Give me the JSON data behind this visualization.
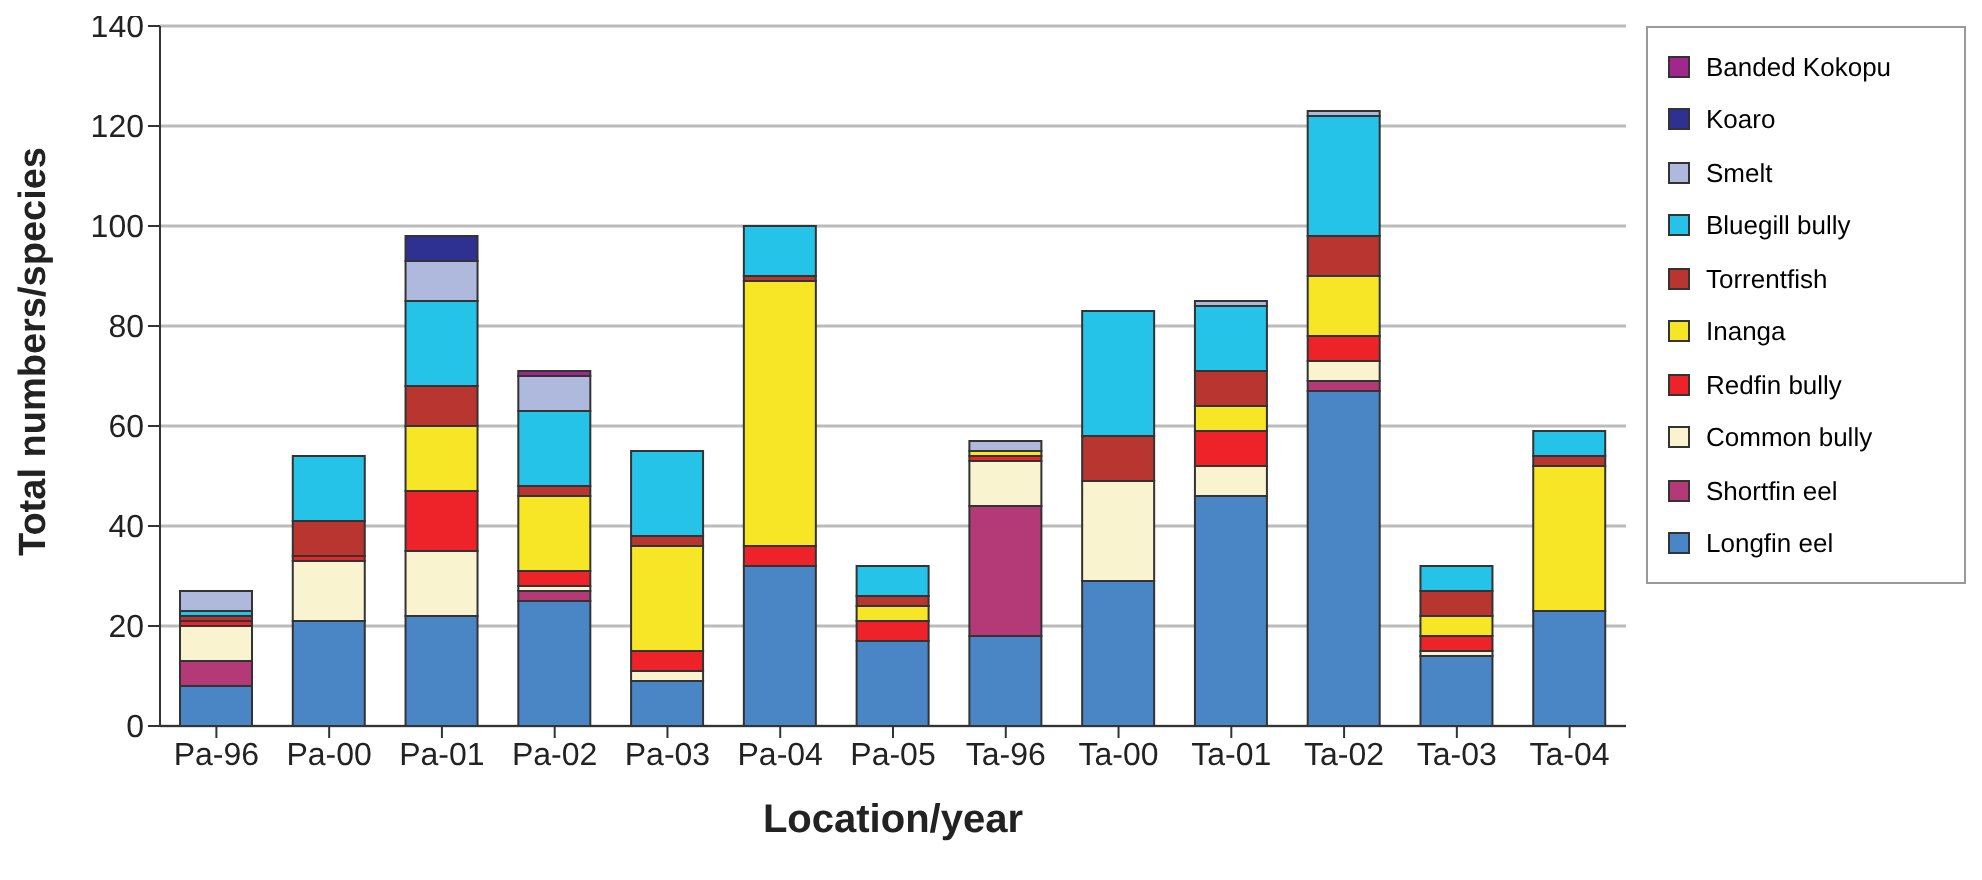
{
  "chart_data": {
    "type": "bar",
    "stacked": true,
    "xlabel": "Location/year",
    "ylabel": "Total numbers/species",
    "categories": [
      "Pa-96",
      "Pa-00",
      "Pa-01",
      "Pa-02",
      "Pa-03",
      "Pa-04",
      "Pa-05",
      "Ta-96",
      "Ta-00",
      "Ta-01",
      "Ta-02",
      "Ta-03",
      "Ta-04"
    ],
    "series": [
      {
        "name": "Longfin eel",
        "color": "#4a86c5",
        "values": [
          8,
          21,
          22,
          25,
          9,
          32,
          17,
          18,
          29,
          46,
          67,
          14,
          23
        ]
      },
      {
        "name": "Shortfin eel",
        "color": "#b33a76",
        "values": [
          5,
          0,
          0,
          2,
          0,
          0,
          0,
          26,
          0,
          0,
          2,
          0,
          0
        ]
      },
      {
        "name": "Common bully",
        "color": "#faf3d0",
        "values": [
          7,
          12,
          13,
          1,
          2,
          0,
          0,
          9,
          20,
          6,
          4,
          1,
          0
        ]
      },
      {
        "name": "Redfin bully",
        "color": "#ee2329",
        "values": [
          1,
          1,
          12,
          3,
          4,
          4,
          4,
          1,
          0,
          7,
          5,
          3,
          0
        ]
      },
      {
        "name": "Inanga",
        "color": "#f7e625",
        "values": [
          0,
          0,
          13,
          15,
          21,
          53,
          3,
          1,
          0,
          5,
          12,
          4,
          29
        ]
      },
      {
        "name": "Torrentfish",
        "color": "#b83530",
        "values": [
          1,
          7,
          8,
          2,
          2,
          1,
          2,
          0,
          9,
          7,
          8,
          5,
          2
        ]
      },
      {
        "name": "Bluegill bully",
        "color": "#26c3e8",
        "values": [
          1,
          13,
          17,
          15,
          17,
          10,
          6,
          0,
          25,
          13,
          24,
          5,
          5
        ]
      },
      {
        "name": "Smelt",
        "color": "#afb8dd",
        "values": [
          4,
          0,
          8,
          7,
          0,
          0,
          0,
          2,
          0,
          1,
          1,
          0,
          0
        ]
      },
      {
        "name": "Koaro",
        "color": "#2e3192",
        "values": [
          0,
          0,
          5,
          0,
          0,
          0,
          0,
          0,
          0,
          0,
          0,
          0,
          0
        ]
      },
      {
        "name": "Banded Kokopu",
        "color": "#a0288c",
        "values": [
          0,
          0,
          0,
          1,
          0,
          0,
          0,
          0,
          0,
          0,
          0,
          0,
          0
        ]
      }
    ],
    "ylim": [
      0,
      140
    ],
    "yticks": [
      0,
      20,
      40,
      60,
      80,
      100,
      120,
      140
    ],
    "grid": "y",
    "legend": "right"
  }
}
